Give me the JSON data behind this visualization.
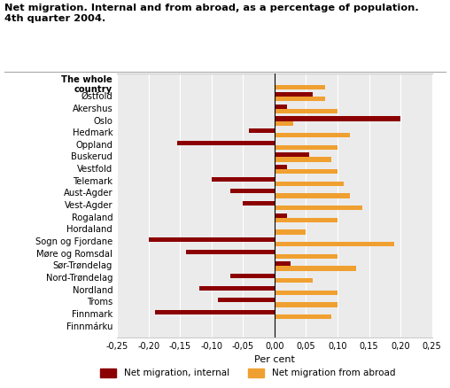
{
  "title_line1": "Net migration. Internal and from abroad, as a percentage of population.",
  "title_line2": "4th quarter 2004.",
  "xlabel": "Per cent",
  "categories": [
    "The whole\ncountry",
    "Østfold",
    "Akershus",
    "Oslo",
    "Hedmark",
    "Oppland",
    "Buskerud",
    "Vestfold",
    "Telemark",
    "Aust-Agder",
    "Vest-Agder",
    "Rogaland",
    "Hordaland",
    "Sogn og Fjordane",
    "Møre og Romsdal",
    "Sør-Trøndelag",
    "Nord-Trøndelag",
    "Nordland",
    "Troms",
    "Finnmark",
    "Finnmárku"
  ],
  "internal": [
    0.0,
    0.06,
    0.02,
    0.2,
    -0.04,
    -0.155,
    0.055,
    0.02,
    -0.1,
    -0.07,
    -0.05,
    0.02,
    0.0,
    -0.2,
    -0.14,
    0.025,
    -0.07,
    -0.12,
    -0.09,
    -0.19,
    0.0
  ],
  "abroad": [
    0.08,
    0.08,
    0.1,
    0.03,
    0.12,
    0.1,
    0.09,
    0.1,
    0.11,
    0.12,
    0.14,
    0.1,
    0.05,
    0.19,
    0.1,
    0.13,
    0.06,
    0.1,
    0.1,
    0.09,
    0.0
  ],
  "color_internal": "#8B0000",
  "color_abroad": "#F0A030",
  "background_color": "#ebebeb",
  "xlim": [
    -0.25,
    0.25
  ],
  "xticks": [
    -0.25,
    -0.2,
    -0.15,
    -0.1,
    -0.05,
    0.0,
    0.05,
    0.1,
    0.15,
    0.2,
    0.25
  ],
  "legend_internal": "Net migration, internal",
  "legend_abroad": "Net migration from abroad"
}
